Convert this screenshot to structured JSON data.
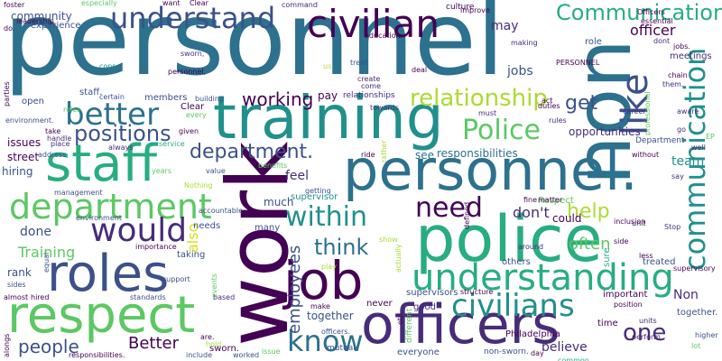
{
  "words": {
    "personnel_big": "personnel",
    "personnel_dot": "personnel.",
    "non": "non",
    "work": "work",
    "police": "police",
    "training": "training",
    "staff": "staff",
    "roles": "roles",
    "respect": "respect",
    "job": "job",
    "officers": "officers",
    "understand": "understand",
    "civilian": "civilian",
    "department": "department",
    "understanding": "understanding",
    "civilians": "civilians",
    "would": "would",
    "like": "like",
    "communication": "communication",
    "communication_cap": "Communication",
    "better": "better",
    "within": "within",
    "know": "know",
    "positions": "positions",
    "police_cap": "Police",
    "relationship": "relationship",
    "working": "working",
    "department_dot": "department.",
    "need": "need",
    "get": "get",
    "think": "think",
    "help": "help",
    "one": "one",
    "people": "people",
    "better_cap": "Better",
    "training_cap": "Training",
    "officer": "officer",
    "employees": "employees",
    "often": "often",
    "dont": "don't",
    "also": "also",
    "community": "community",
    "jobs": "jobs",
    "may": "may",
    "believe": "believe",
    "issues": "issues",
    "street": "street",
    "hiring": "hiring",
    "feel": "feel",
    "done": "done",
    "rank": "rank",
    "see": "see",
    "responsibilities": "responsibilities",
    "team": "team",
    "opportunities": "opportunities",
    "department_cap": "Department",
    "could": "could",
    "respect_cap": "Respect",
    "supervisor": "supervisor",
    "pay": "pay",
    "relationships": "relationships",
    "meetings": "meetings",
    "role": "role",
    "experience": "experience",
    "much": "much",
    "members": "members",
    "open": "open",
    "staff_dot": "staff.",
    "Non": "Non",
    "together": "together",
    "together_dot": "together.",
    "supervisors": "supervisors",
    "sworn": "sworn.",
    "philadelphia": "Philadelphia",
    "never": "never",
    "treated": "treated",
    "others": "others",
    "important": "important",
    "time": "time",
    "everyone": "everyone",
    "non_sworn": "non-sworn.",
    "mutual": "mutual",
    "good": "good",
    "many": "many",
    "needs": "needs",
    "taking": "taking",
    "support": "support",
    "standards": "standards",
    "based": "based",
    "clear": "Clear",
    "culture": "culture",
    "foster": "foster",
    "want": "want",
    "clear_top": "Clear",
    "personnel_comma": "personnel,",
    "sworn_comma": "sworn,",
    "command": "command",
    "especially": "especially",
    "building": "building",
    "rules": "rules",
    "stop": "Stop",
    "around": "around",
    "certain": "certain",
    "always": "always",
    "value": "value",
    "treat": "treat",
    "towards": "towards",
    "must": "must",
    "ride": "ride",
    "making": "making",
    "leadership": "leadership",
    "education": "education",
    "create": "create",
    "come": "come",
    "us": "us",
    "them": "them.",
    "chain": "chain",
    "essential": "essential",
    "officers_cap": "Officers",
    "dont_plain": "dont",
    "jobs_dot": "jobs.",
    "professional": "professional",
    "career": "career",
    "aware": "aware",
    "do": "do.",
    "parties": "parties",
    "environment_dot": "environment.",
    "place": "place",
    "take": "take",
    "handle": "handle",
    "address": "address",
    "cops": "cops",
    "nothing": "Nothing",
    "accountable": "accountable",
    "benefits": "benefits",
    "getting": "getting",
    "events": "events",
    "equal": "equal",
    "years": "years",
    "management": "management",
    "environment": "environment",
    "importance": "importance",
    "hired": "hired",
    "almost": "almost",
    "sides": "sides",
    "alongs": "alongs",
    "responsibilities_dot": "responsibilities.",
    "include": "include",
    "worked": "worked",
    "issue": "issue",
    "are": "are.",
    "hold": "hold",
    "make": "make",
    "officers_dot": "officers.",
    "matter": "matter",
    "fine": "fine",
    "defined": "defined",
    "structure": "structure",
    "sure": "sure",
    "less": "less",
    "side": "side",
    "perform": "perform",
    "units": "units",
    "position": "position",
    "common": "common",
    "day": "day",
    "higher": "higher",
    "supervisory": "supervisory",
    "unit": "unit",
    "inclusion": "inclusion",
    "without": "without",
    "say": "say",
    "well": "well",
    "go": "go",
    "act": "act",
    "duties": "duties",
    "deal": "deal",
    "improve": "improve",
    "service": "service",
    "given": "given",
    "every": "every",
    "roles_dot": "roles.",
    "personnel_upper": "PERSONNEL",
    "etc": "etc.",
    "play": "play",
    "actually": "actually",
    "different": "different",
    "show": "show",
    "rather": "rather",
    "lot": "lot",
    "ep": "EP"
  }
}
